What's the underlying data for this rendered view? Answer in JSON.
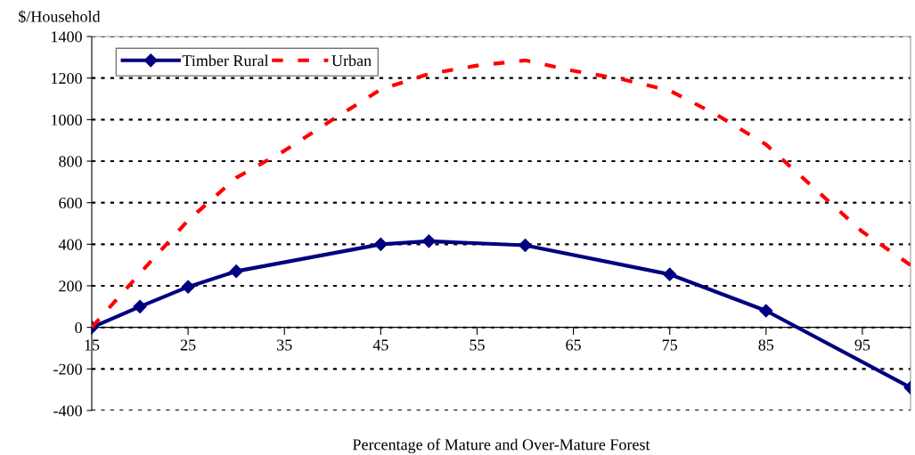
{
  "chart_data": {
    "type": "line",
    "xlabel": "Percentage of Mature and Over-Mature Forest",
    "ylabel": "$/Household",
    "xlim": [
      15,
      100
    ],
    "xticks": [
      15,
      25,
      35,
      45,
      55,
      65,
      75,
      85,
      95
    ],
    "ylim": [
      -400,
      1400
    ],
    "yticks": [
      -400,
      -200,
      0,
      200,
      400,
      600,
      800,
      1000,
      1200,
      1400
    ],
    "grid": "y",
    "legend": "top left",
    "series": [
      {
        "name": "Timber Rural",
        "color": "#000080",
        "marker": "diamond",
        "line_style": "solid",
        "x": [
          15,
          20,
          25,
          30,
          45,
          50,
          60,
          75,
          85,
          100
        ],
        "values": [
          0,
          100,
          195,
          270,
          400,
          415,
          395,
          255,
          80,
          -290
        ]
      },
      {
        "name": "Urban",
        "color": "#ff0000",
        "marker": "none",
        "line_style": "dashed",
        "x": [
          15,
          20,
          25,
          30,
          35,
          40,
          45,
          50,
          55,
          60,
          65,
          70,
          75,
          80,
          85,
          90,
          95,
          100
        ],
        "values": [
          0,
          260,
          515,
          720,
          850,
          1000,
          1145,
          1220,
          1260,
          1285,
          1235,
          1195,
          1140,
          1020,
          880,
          670,
          460,
          300
        ]
      }
    ]
  }
}
